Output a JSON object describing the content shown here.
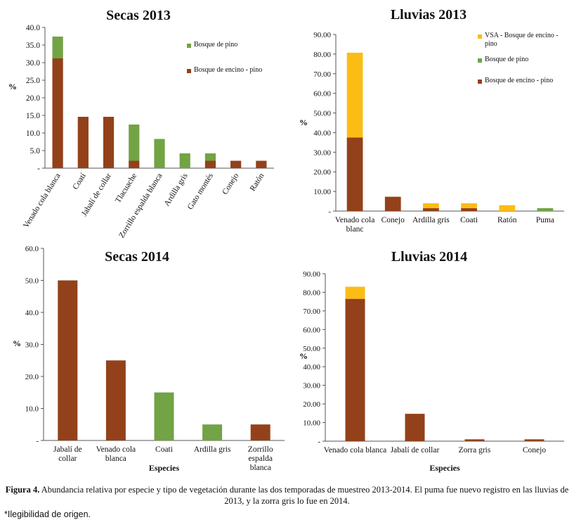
{
  "colors": {
    "oak_pine": "#93411a",
    "pine": "#72a344",
    "vsa": "#fbbc15",
    "axis": "#555555",
    "text": "#111111"
  },
  "chart_data": [
    {
      "type": "bar",
      "stacked": true,
      "title": "Secas 2013",
      "ylabel": "%",
      "xlabel": "",
      "ylim": [
        0,
        40
      ],
      "yticks": [
        "-",
        "5.0",
        "10.0",
        "15.0",
        "20.0",
        "25.0",
        "30.0",
        "35.0",
        "40.0"
      ],
      "categories": [
        "Venado cola blanca",
        "Coatí",
        "Jabalí de collar",
        "Tlacuache",
        "Zorrillo espalda blanca",
        "Ardilla gris",
        "Gato montés",
        "Conejo",
        "Ratón"
      ],
      "legend": [
        "Bosque de pino",
        "Bosque de encino - pino"
      ],
      "legend_position": "top-right",
      "series": [
        {
          "name": "Bosque de encino - pino",
          "color": "oak_pine",
          "values": [
            31.2,
            14.6,
            14.6,
            2.1,
            0,
            0,
            2.1,
            2.1,
            2.1
          ]
        },
        {
          "name": "Bosque de pino",
          "color": "pine",
          "values": [
            6.2,
            0,
            0,
            10.3,
            8.3,
            4.2,
            2.1,
            0,
            0
          ]
        }
      ]
    },
    {
      "type": "bar",
      "stacked": true,
      "title": "Lluvias 2013",
      "ylabel": "%",
      "xlabel": "",
      "ylim": [
        0,
        90
      ],
      "yticks": [
        "-",
        "10.00",
        "20.00",
        "30.00",
        "40.00",
        "50.00",
        "60.00",
        "70.00",
        "80.00",
        "90.00"
      ],
      "categories": [
        "Venado cola blanc",
        "Conejo",
        "Ardilla gris",
        "Coati",
        "Ratón",
        "Puma"
      ],
      "legend": [
        "VSA - Bosque de encino - pino",
        "Bosque de pino",
        "Bosque de encino - pino"
      ],
      "legend_position": "top-right",
      "series": [
        {
          "name": "Bosque de encino - pino",
          "color": "oak_pine",
          "values": [
            37.5,
            7.3,
            1.5,
            1.5,
            0,
            0
          ]
        },
        {
          "name": "Bosque de pino",
          "color": "pine",
          "values": [
            0,
            0,
            0,
            0,
            0,
            1.5
          ]
        },
        {
          "name": "VSA - Bosque de encino - pino",
          "color": "vsa",
          "values": [
            43.2,
            0,
            2.5,
            2.5,
            3.0,
            0
          ]
        }
      ]
    },
    {
      "type": "bar",
      "stacked": true,
      "title": "Secas 2014",
      "ylabel": "%",
      "xlabel": "Especies",
      "ylim": [
        0,
        60
      ],
      "yticks": [
        "-",
        "10.0",
        "20.0",
        "30.0",
        "40.0",
        "50.0",
        "60.0"
      ],
      "categories": [
        "Jabalí de collar",
        "Venado cola blanca",
        "Coati",
        "Ardilla gris",
        "Zorrillo espalda blanca"
      ],
      "legend": [],
      "series": [
        {
          "name": "Bosque de encino - pino",
          "color": "oak_pine",
          "values": [
            50.0,
            25.0,
            0,
            0,
            5.0
          ]
        },
        {
          "name": "Bosque de pino",
          "color": "pine",
          "values": [
            0,
            0,
            15.0,
            5.0,
            0
          ]
        }
      ]
    },
    {
      "type": "bar",
      "stacked": true,
      "title": "Lluvias 2014",
      "ylabel": "%",
      "xlabel": "Especies",
      "ylim": [
        0,
        90
      ],
      "yticks": [
        "-",
        "10.00",
        "20.00",
        "30.00",
        "40.00",
        "50.00",
        "60.00",
        "70.00",
        "80.00",
        "90.00"
      ],
      "categories": [
        "Venado cola blanca",
        "Jabalí de collar",
        "Zorra gris",
        "Conejo"
      ],
      "legend": [],
      "series": [
        {
          "name": "Bosque de encino - pino",
          "color": "oak_pine",
          "values": [
            76.5,
            14.7,
            1.0,
            1.0
          ]
        },
        {
          "name": "VSA - Bosque de encino - pino",
          "color": "vsa",
          "values": [
            6.5,
            0,
            0,
            0
          ]
        }
      ]
    }
  ],
  "caption": {
    "label": "Figura 4.",
    "text": " Abundancia relativa por especie y tipo de vegetación durante las dos temporadas de muestreo 2013-2014. El puma fue nuevo registro en las lluvias de 2013, y la zorra gris lo fue en 2014."
  },
  "footnote": "*Ilegibilidad de origen."
}
